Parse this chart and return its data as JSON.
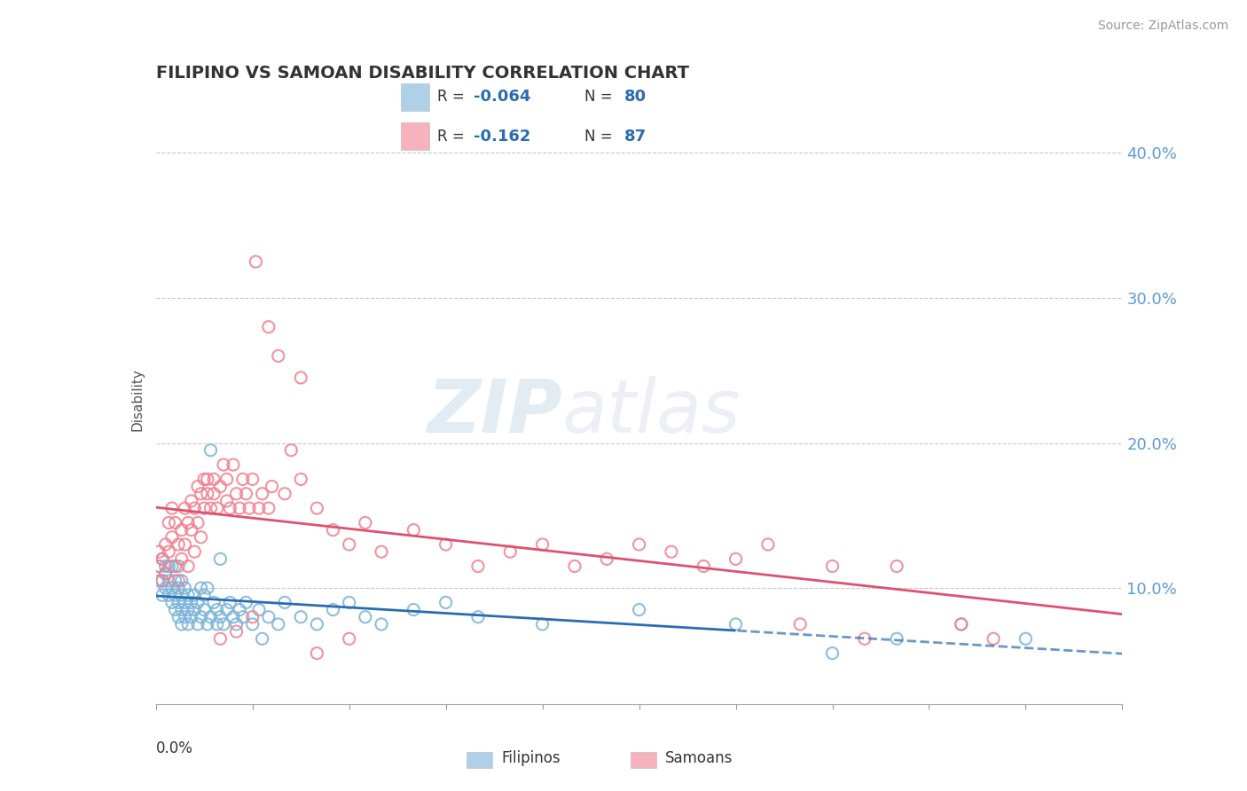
{
  "title": "FILIPINO VS SAMOAN DISABILITY CORRELATION CHART",
  "source": "Source: ZipAtlas.com",
  "ylabel": "Disability",
  "y_ticks": [
    0.1,
    0.2,
    0.3,
    0.4
  ],
  "y_tick_labels": [
    "10.0%",
    "20.0%",
    "30.0%",
    "40.0%"
  ],
  "x_min": 0.0,
  "x_max": 0.3,
  "y_min": 0.02,
  "y_max": 0.44,
  "filipino_color": "#7ab3d9",
  "samoan_color": "#f08090",
  "filipino_line_color": "#2b6cb0",
  "samoan_line_color": "#e05070",
  "legend_color": "#2b6cb0",
  "watermark_zip": "ZIP",
  "watermark_atlas": "atlas",
  "filipino_R": "-0.064",
  "filipino_N": "80",
  "samoan_R": "-0.162",
  "samoan_N": "87",
  "filipino_scatter": [
    [
      0.001,
      0.115
    ],
    [
      0.001,
      0.105
    ],
    [
      0.002,
      0.12
    ],
    [
      0.002,
      0.095
    ],
    [
      0.002,
      0.105
    ],
    [
      0.003,
      0.11
    ],
    [
      0.003,
      0.1
    ],
    [
      0.003,
      0.115
    ],
    [
      0.004,
      0.095
    ],
    [
      0.004,
      0.105
    ],
    [
      0.004,
      0.115
    ],
    [
      0.005,
      0.09
    ],
    [
      0.005,
      0.1
    ],
    [
      0.005,
      0.115
    ],
    [
      0.006,
      0.085
    ],
    [
      0.006,
      0.095
    ],
    [
      0.006,
      0.105
    ],
    [
      0.007,
      0.08
    ],
    [
      0.007,
      0.09
    ],
    [
      0.007,
      0.1
    ],
    [
      0.007,
      0.115
    ],
    [
      0.008,
      0.075
    ],
    [
      0.008,
      0.085
    ],
    [
      0.008,
      0.095
    ],
    [
      0.008,
      0.105
    ],
    [
      0.009,
      0.08
    ],
    [
      0.009,
      0.09
    ],
    [
      0.009,
      0.1
    ],
    [
      0.01,
      0.075
    ],
    [
      0.01,
      0.085
    ],
    [
      0.01,
      0.095
    ],
    [
      0.011,
      0.08
    ],
    [
      0.011,
      0.09
    ],
    [
      0.012,
      0.095
    ],
    [
      0.012,
      0.085
    ],
    [
      0.013,
      0.075
    ],
    [
      0.013,
      0.09
    ],
    [
      0.014,
      0.08
    ],
    [
      0.014,
      0.1
    ],
    [
      0.015,
      0.085
    ],
    [
      0.015,
      0.095
    ],
    [
      0.016,
      0.075
    ],
    [
      0.016,
      0.1
    ],
    [
      0.017,
      0.08
    ],
    [
      0.017,
      0.195
    ],
    [
      0.018,
      0.09
    ],
    [
      0.019,
      0.075
    ],
    [
      0.019,
      0.085
    ],
    [
      0.02,
      0.08
    ],
    [
      0.02,
      0.12
    ],
    [
      0.021,
      0.075
    ],
    [
      0.022,
      0.085
    ],
    [
      0.023,
      0.09
    ],
    [
      0.024,
      0.08
    ],
    [
      0.025,
      0.075
    ],
    [
      0.026,
      0.085
    ],
    [
      0.027,
      0.08
    ],
    [
      0.028,
      0.09
    ],
    [
      0.03,
      0.075
    ],
    [
      0.032,
      0.085
    ],
    [
      0.033,
      0.065
    ],
    [
      0.035,
      0.08
    ],
    [
      0.038,
      0.075
    ],
    [
      0.04,
      0.09
    ],
    [
      0.045,
      0.08
    ],
    [
      0.05,
      0.075
    ],
    [
      0.055,
      0.085
    ],
    [
      0.06,
      0.09
    ],
    [
      0.065,
      0.08
    ],
    [
      0.07,
      0.075
    ],
    [
      0.08,
      0.085
    ],
    [
      0.09,
      0.09
    ],
    [
      0.1,
      0.08
    ],
    [
      0.12,
      0.075
    ],
    [
      0.15,
      0.085
    ],
    [
      0.18,
      0.075
    ],
    [
      0.21,
      0.055
    ],
    [
      0.23,
      0.065
    ],
    [
      0.25,
      0.075
    ],
    [
      0.27,
      0.065
    ]
  ],
  "samoan_scatter": [
    [
      0.001,
      0.115
    ],
    [
      0.001,
      0.125
    ],
    [
      0.002,
      0.105
    ],
    [
      0.002,
      0.12
    ],
    [
      0.003,
      0.13
    ],
    [
      0.003,
      0.11
    ],
    [
      0.004,
      0.145
    ],
    [
      0.004,
      0.125
    ],
    [
      0.005,
      0.155
    ],
    [
      0.005,
      0.135
    ],
    [
      0.006,
      0.145
    ],
    [
      0.006,
      0.115
    ],
    [
      0.007,
      0.13
    ],
    [
      0.007,
      0.105
    ],
    [
      0.008,
      0.14
    ],
    [
      0.008,
      0.12
    ],
    [
      0.009,
      0.155
    ],
    [
      0.009,
      0.13
    ],
    [
      0.01,
      0.145
    ],
    [
      0.01,
      0.115
    ],
    [
      0.011,
      0.16
    ],
    [
      0.011,
      0.14
    ],
    [
      0.012,
      0.155
    ],
    [
      0.012,
      0.125
    ],
    [
      0.013,
      0.17
    ],
    [
      0.013,
      0.145
    ],
    [
      0.014,
      0.165
    ],
    [
      0.014,
      0.135
    ],
    [
      0.015,
      0.175
    ],
    [
      0.015,
      0.155
    ],
    [
      0.016,
      0.165
    ],
    [
      0.016,
      0.175
    ],
    [
      0.017,
      0.155
    ],
    [
      0.018,
      0.165
    ],
    [
      0.018,
      0.175
    ],
    [
      0.019,
      0.155
    ],
    [
      0.02,
      0.17
    ],
    [
      0.021,
      0.185
    ],
    [
      0.022,
      0.16
    ],
    [
      0.022,
      0.175
    ],
    [
      0.023,
      0.155
    ],
    [
      0.024,
      0.185
    ],
    [
      0.025,
      0.165
    ],
    [
      0.026,
      0.155
    ],
    [
      0.027,
      0.175
    ],
    [
      0.028,
      0.165
    ],
    [
      0.029,
      0.155
    ],
    [
      0.03,
      0.175
    ],
    [
      0.031,
      0.325
    ],
    [
      0.032,
      0.155
    ],
    [
      0.033,
      0.165
    ],
    [
      0.035,
      0.155
    ],
    [
      0.036,
      0.17
    ],
    [
      0.038,
      0.26
    ],
    [
      0.04,
      0.165
    ],
    [
      0.042,
      0.195
    ],
    [
      0.045,
      0.175
    ],
    [
      0.05,
      0.155
    ],
    [
      0.055,
      0.14
    ],
    [
      0.06,
      0.13
    ],
    [
      0.065,
      0.145
    ],
    [
      0.07,
      0.125
    ],
    [
      0.08,
      0.14
    ],
    [
      0.09,
      0.13
    ],
    [
      0.1,
      0.115
    ],
    [
      0.11,
      0.125
    ],
    [
      0.12,
      0.13
    ],
    [
      0.13,
      0.115
    ],
    [
      0.14,
      0.12
    ],
    [
      0.15,
      0.13
    ],
    [
      0.16,
      0.125
    ],
    [
      0.17,
      0.115
    ],
    [
      0.18,
      0.12
    ],
    [
      0.19,
      0.13
    ],
    [
      0.2,
      0.075
    ],
    [
      0.21,
      0.115
    ],
    [
      0.22,
      0.065
    ],
    [
      0.23,
      0.115
    ],
    [
      0.25,
      0.075
    ],
    [
      0.26,
      0.065
    ],
    [
      0.02,
      0.065
    ],
    [
      0.025,
      0.07
    ],
    [
      0.03,
      0.08
    ],
    [
      0.05,
      0.055
    ],
    [
      0.06,
      0.065
    ],
    [
      0.035,
      0.28
    ],
    [
      0.045,
      0.245
    ]
  ]
}
